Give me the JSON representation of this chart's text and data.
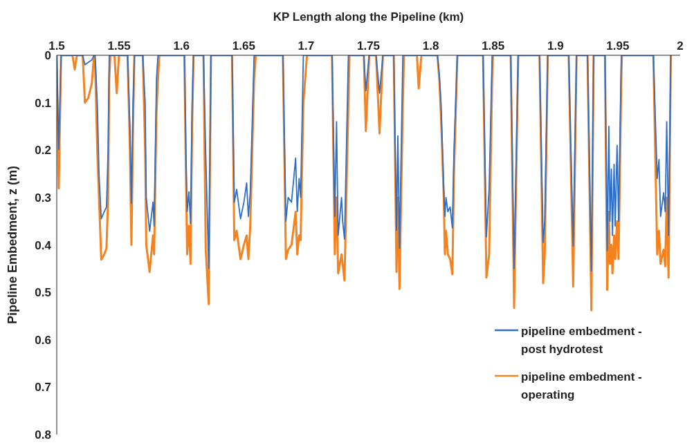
{
  "chart_data": {
    "type": "line",
    "xlabel": "KP Length along the Pipeline (km)",
    "ylabel": "Pipeline Embedment, z (m)",
    "x": [
      1.5,
      1.5016,
      1.5035,
      1.5053,
      1.5126,
      1.5144,
      1.5162,
      1.5208,
      1.5226,
      1.5253,
      1.5281,
      1.5299,
      1.5308,
      1.5326,
      1.5339,
      1.5357,
      1.5381,
      1.5399,
      1.5412,
      1.5421,
      1.543,
      1.5463,
      1.5481,
      1.5499,
      1.5568,
      1.5587,
      1.5599,
      1.5612,
      1.5623,
      1.569,
      1.5709,
      1.5718,
      1.5745,
      1.5772,
      1.5781,
      1.58,
      1.5812,
      1.5823,
      1.6024,
      1.6036,
      1.6046,
      1.606,
      1.6073,
      1.6086,
      1.6097,
      1.6177,
      1.6195,
      1.6219,
      1.6237,
      1.6406,
      1.6424,
      1.6443,
      1.6474,
      1.6501,
      1.6523,
      1.6537,
      1.6552,
      1.6583,
      1.6597,
      1.6814,
      1.6838,
      1.6856,
      1.6883,
      1.6916,
      1.6929,
      1.6944,
      1.6956,
      1.6978,
      1.7007,
      1.7208,
      1.723,
      1.7244,
      1.7257,
      1.7284,
      1.7293,
      1.7308,
      1.7339,
      1.7348,
      1.7463,
      1.7479,
      1.7506,
      1.7561,
      1.7589,
      1.7616,
      1.7703,
      1.7725,
      1.7736,
      1.7749,
      1.7776,
      1.7785,
      1.7889,
      1.7903,
      1.7925,
      1.8053,
      1.8068,
      1.8082,
      1.8104,
      1.8113,
      1.8122,
      1.8137,
      1.8155,
      1.8173,
      1.8186,
      1.8213,
      1.8419,
      1.8446,
      1.8468,
      1.8492,
      1.8499,
      1.8641,
      1.8668,
      1.8701,
      1.8872,
      1.8901,
      1.8914,
      1.8938,
      1.9106,
      1.9142,
      1.9169,
      1.9257,
      1.9288,
      1.9306,
      1.9397,
      1.9415,
      1.9428,
      1.9437,
      1.9448,
      1.9457,
      1.947,
      1.9479,
      1.9494,
      1.9506,
      1.9528,
      1.9533,
      1.9785,
      1.9816,
      1.983,
      1.9843,
      1.9867,
      1.988,
      1.9892,
      1.9907,
      1.9925
    ],
    "series": [
      {
        "name": "pipeline embedment - post hydrotest",
        "color": "#2e6ec4",
        "x": [
          1.5,
          1.5016,
          1.5035,
          1.5053,
          1.5208,
          1.5226,
          1.5253,
          1.5281,
          1.5299,
          1.5308,
          1.5326,
          1.5339,
          1.5357,
          1.5381,
          1.5399,
          1.5412,
          1.5421,
          1.543,
          1.5568,
          1.5587,
          1.5599,
          1.5612,
          1.5623,
          1.569,
          1.5709,
          1.5718,
          1.5745,
          1.5772,
          1.5781,
          1.58,
          1.5812,
          1.5823,
          1.6024,
          1.6036,
          1.6046,
          1.606,
          1.6073,
          1.6086,
          1.6097,
          1.6177,
          1.6195,
          1.6219,
          1.6237,
          1.6406,
          1.6424,
          1.6443,
          1.6474,
          1.6501,
          1.6523,
          1.6537,
          1.6552,
          1.6583,
          1.6597,
          1.6814,
          1.6838,
          1.6856,
          1.6883,
          1.6916,
          1.6929,
          1.6944,
          1.6956,
          1.6978,
          1.7208,
          1.723,
          1.7244,
          1.7257,
          1.7284,
          1.7293,
          1.7308,
          1.7339,
          1.7348,
          1.7463,
          1.7479,
          1.7506,
          1.7561,
          1.7589,
          1.7616,
          1.7703,
          1.7725,
          1.7736,
          1.7749,
          1.7776,
          1.7785,
          1.8053,
          1.8068,
          1.8082,
          1.8104,
          1.8113,
          1.8122,
          1.8137,
          1.8155,
          1.8173,
          1.8186,
          1.8213,
          1.8419,
          1.8446,
          1.8468,
          1.8492,
          1.8499,
          1.8641,
          1.8668,
          1.8701,
          1.8872,
          1.8901,
          1.8914,
          1.8938,
          1.9106,
          1.9142,
          1.9169,
          1.9257,
          1.9288,
          1.9306,
          1.9397,
          1.9415,
          1.9428,
          1.9437,
          1.9448,
          1.9457,
          1.947,
          1.9479,
          1.9494,
          1.9506,
          1.9528,
          1.9533,
          1.9785,
          1.9816,
          1.983,
          1.9843,
          1.9867,
          1.988,
          1.9892,
          1.9907,
          1.9925
        ],
        "values": [
          0,
          0.198,
          0,
          0,
          0,
          0.02,
          0.015,
          0.01,
          0,
          0,
          0.107,
          0.25,
          0.345,
          0.33,
          0.32,
          0.2,
          0,
          0,
          0,
          0.15,
          0.312,
          0.1,
          0,
          0,
          0.1,
          0.3,
          0.371,
          0.31,
          0.36,
          0.05,
          0,
          0,
          0,
          0.2,
          0.33,
          0.288,
          0.355,
          0.1,
          0,
          0,
          0.21,
          0.45,
          0,
          0,
          0.31,
          0.283,
          0.345,
          0.31,
          0.269,
          0.34,
          0.29,
          0,
          0,
          0,
          0.35,
          0.3,
          0.31,
          0.217,
          0.33,
          0.26,
          0.3,
          0,
          0,
          0.34,
          0.14,
          0.38,
          0.3,
          0.35,
          0.388,
          0,
          0,
          0,
          0.075,
          0,
          0,
          0.08,
          0,
          0,
          0.369,
          0.17,
          0.407,
          0,
          0,
          0,
          0.04,
          0.1,
          0.28,
          0.34,
          0.3,
          0.33,
          0.32,
          0.364,
          0.2,
          0,
          0,
          0.383,
          0.28,
          0,
          0,
          0,
          0.45,
          0,
          0,
          0.395,
          0.35,
          0,
          0,
          0.402,
          0,
          0,
          0.455,
          0,
          0,
          0.412,
          0.15,
          0.35,
          0.24,
          0.38,
          0.23,
          0.36,
          0.19,
          0.35,
          0,
          0,
          0,
          0.26,
          0.22,
          0.34,
          0.29,
          0.33,
          0.14,
          0.38,
          0
        ]
      },
      {
        "name": "pipeline embedment - operating",
        "color": "#f5821f",
        "values": [
          0,
          0.281,
          0,
          0,
          0,
          0.03,
          0,
          0,
          0.1,
          0.09,
          0.06,
          0,
          0.02,
          0.207,
          0.3,
          0.431,
          0.42,
          0.407,
          0.3,
          0.05,
          0,
          0,
          0.08,
          0,
          0,
          0.2,
          0.4,
          0.15,
          0,
          0,
          0.2,
          0.4,
          0.457,
          0.38,
          0.42,
          0.12,
          0.05,
          0,
          0,
          0.25,
          0.42,
          0.36,
          0.44,
          0.15,
          0,
          0,
          0.41,
          0.525,
          0,
          0,
          0.39,
          0.37,
          0.43,
          0.4,
          0.38,
          0.43,
          0.36,
          0.05,
          0,
          0,
          0.43,
          0.41,
          0.4,
          0.33,
          0.42,
          0.38,
          0.39,
          0.1,
          0,
          0,
          0.42,
          0.3,
          0.46,
          0.42,
          0.44,
          0.475,
          0.1,
          0,
          0,
          0.16,
          0,
          0,
          0.165,
          0,
          0,
          0.457,
          0.3,
          0.493,
          0.1,
          0,
          0,
          0.07,
          0,
          0,
          0.05,
          0.13,
          0.3,
          0.42,
          0.37,
          0.42,
          0.43,
          0.462,
          0.25,
          0,
          0,
          0.469,
          0.42,
          0.05,
          0,
          0,
          0.533,
          0,
          0,
          0.481,
          0.42,
          0,
          0,
          0.488,
          0,
          0,
          0.538,
          0,
          0,
          0.495,
          0.33,
          0.44,
          0.4,
          0.46,
          0.38,
          0.43,
          0.35,
          0.43,
          0.05,
          0,
          0,
          0.42,
          0.37,
          0.44,
          0.41,
          0.445,
          0.3,
          0.469,
          0
        ]
      }
    ],
    "xlim": [
      1.5,
      2
    ],
    "xticks": [
      1.5,
      1.55,
      1.6,
      1.65,
      1.7,
      1.75,
      1.8,
      1.85,
      1.9,
      1.95,
      2
    ],
    "ylim": [
      0.8,
      0
    ],
    "yticks": [
      0,
      0.1,
      0.2,
      0.3,
      0.4,
      0.5,
      0.6,
      0.7,
      0.8
    ],
    "legend": "bottom right",
    "marker": "none",
    "line_style": "solid"
  }
}
